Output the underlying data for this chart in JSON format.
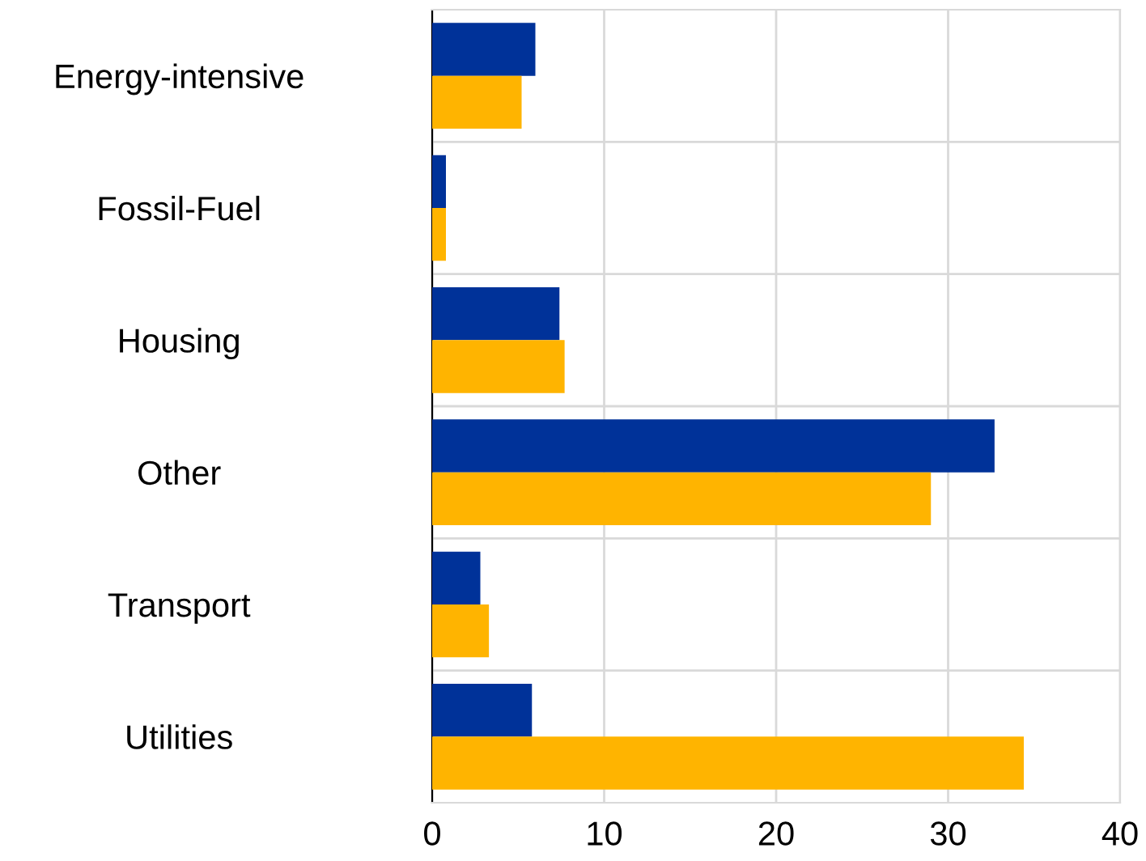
{
  "chart_data": {
    "type": "bar",
    "orientation": "horizontal",
    "categories": [
      "Energy-intensive",
      "Fossil-Fuel",
      "Housing",
      "Other",
      "Transport",
      "Utilities"
    ],
    "series": [
      {
        "color": "#003299",
        "values": [
          6.0,
          0.8,
          7.4,
          32.7,
          2.8,
          5.8
        ]
      },
      {
        "color": "#ffb400",
        "values": [
          5.2,
          0.8,
          7.7,
          29.0,
          3.3,
          34.4
        ]
      }
    ],
    "xlim": [
      0,
      40
    ],
    "xticks": [
      0,
      10,
      20,
      30,
      40
    ],
    "grid": true,
    "legend": false
  }
}
